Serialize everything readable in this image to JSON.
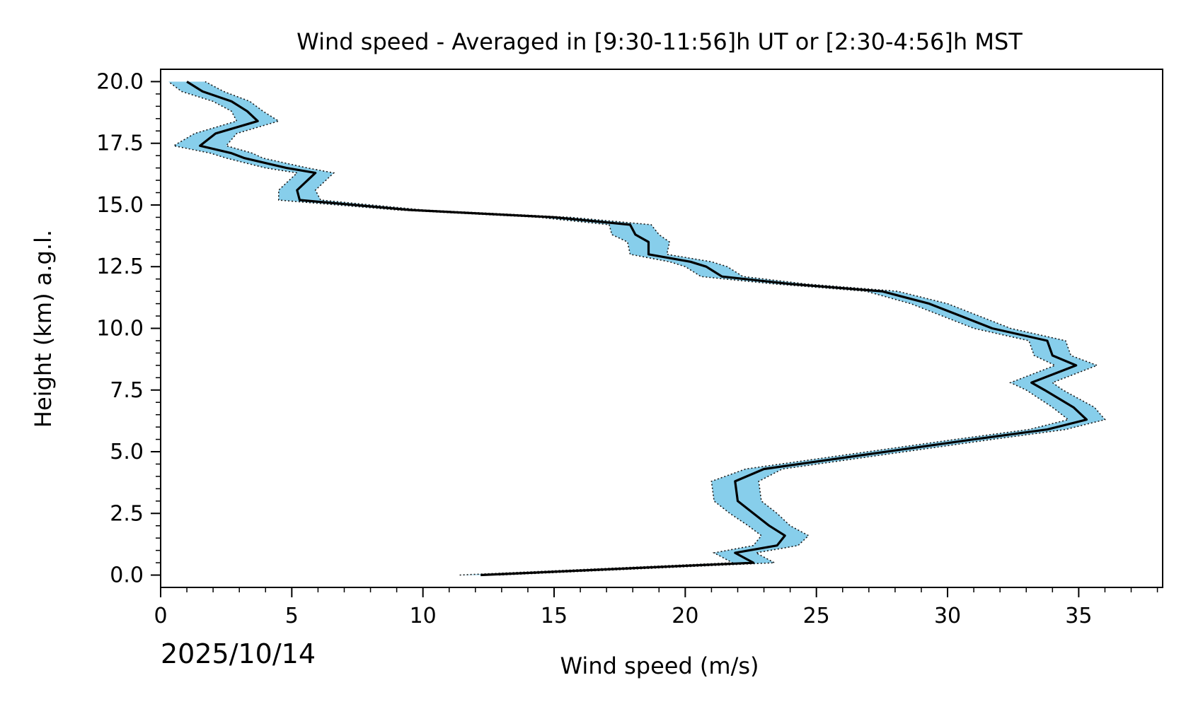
{
  "chart_data": {
    "type": "line",
    "title": "Wind speed - Averaged in [9:30-11:56]h UT or [2:30-4:56]h MST",
    "xlabel": "Wind speed (m/s)",
    "ylabel": "Height (km) a.g.l.",
    "date_label": "2025/10/14",
    "xlim": [
      0,
      38.2
    ],
    "ylim": [
      -0.5,
      20.5
    ],
    "xticks": [
      0,
      5,
      10,
      15,
      20,
      25,
      30,
      35
    ],
    "xtick_labels": [
      "0",
      "5",
      "10",
      "15",
      "20",
      "25",
      "30",
      "35"
    ],
    "yticks": [
      0,
      2.5,
      5,
      7.5,
      10,
      12.5,
      15,
      17.5,
      20
    ],
    "ytick_labels": [
      "0.0",
      "2.5",
      "5.0",
      "7.5",
      "10.0",
      "12.5",
      "15.0",
      "17.5",
      "20.0"
    ],
    "colors": {
      "mean_line": "#000000",
      "band_fill": "#87ceeb",
      "band_edge": "#1a1a1a"
    },
    "series": [
      {
        "name": "mean wind speed",
        "points": [
          [
            12.2,
            0.0
          ],
          [
            22.6,
            0.5
          ],
          [
            21.9,
            0.9
          ],
          [
            23.5,
            1.2
          ],
          [
            23.8,
            1.6
          ],
          [
            23.2,
            2.0
          ],
          [
            22.6,
            2.5
          ],
          [
            22.0,
            3.0
          ],
          [
            21.9,
            3.8
          ],
          [
            23.0,
            4.3
          ],
          [
            27.0,
            4.9
          ],
          [
            31.0,
            5.5
          ],
          [
            33.8,
            5.9
          ],
          [
            35.3,
            6.3
          ],
          [
            34.8,
            6.8
          ],
          [
            33.7,
            7.5
          ],
          [
            33.2,
            7.8
          ],
          [
            34.9,
            8.5
          ],
          [
            34.0,
            8.9
          ],
          [
            33.8,
            9.5
          ],
          [
            31.7,
            10.0
          ],
          [
            30.5,
            10.5
          ],
          [
            29.3,
            11.0
          ],
          [
            27.5,
            11.5
          ],
          [
            24.0,
            11.8
          ],
          [
            21.4,
            12.1
          ],
          [
            20.8,
            12.5
          ],
          [
            20.2,
            12.7
          ],
          [
            18.6,
            13.0
          ],
          [
            18.6,
            13.5
          ],
          [
            18.1,
            13.8
          ],
          [
            17.9,
            14.2
          ],
          [
            15.0,
            14.5
          ],
          [
            9.5,
            14.8
          ],
          [
            5.3,
            15.2
          ],
          [
            5.2,
            15.6
          ],
          [
            5.9,
            16.3
          ],
          [
            4.8,
            16.5
          ],
          [
            3.2,
            16.9
          ],
          [
            2.7,
            17.1
          ],
          [
            1.5,
            17.4
          ],
          [
            2.1,
            17.9
          ],
          [
            3.7,
            18.4
          ],
          [
            3.3,
            18.8
          ],
          [
            2.7,
            19.2
          ],
          [
            1.6,
            19.6
          ],
          [
            1.0,
            20.0
          ]
        ],
        "lower": [
          11.4,
          21.8,
          21.1,
          22.6,
          22.9,
          22.4,
          21.7,
          21.1,
          21.0,
          22.3,
          26.3,
          30.3,
          33.1,
          34.6,
          34.0,
          33.0,
          32.4,
          34.1,
          33.3,
          33.1,
          31.0,
          29.8,
          28.6,
          26.9,
          23.4,
          20.6,
          20.0,
          19.4,
          17.9,
          17.8,
          17.2,
          17.1,
          14.4,
          9.0,
          4.5,
          4.5,
          5.2,
          4.0,
          2.5,
          1.9,
          0.5,
          1.3,
          2.9,
          2.7,
          2.0,
          0.8,
          0.3
        ],
        "upper": [
          12.9,
          23.4,
          22.7,
          24.3,
          24.7,
          24.0,
          23.5,
          22.9,
          22.8,
          23.7,
          27.7,
          31.7,
          34.5,
          36.0,
          35.6,
          34.4,
          34.0,
          35.7,
          34.7,
          34.5,
          32.4,
          31.2,
          30.0,
          28.1,
          24.6,
          22.2,
          21.6,
          21.0,
          19.3,
          19.4,
          19.0,
          18.7,
          15.6,
          10.0,
          6.1,
          5.9,
          6.6,
          5.6,
          3.9,
          3.5,
          2.5,
          2.9,
          4.5,
          3.9,
          3.4,
          2.4,
          1.7
        ]
      }
    ]
  }
}
